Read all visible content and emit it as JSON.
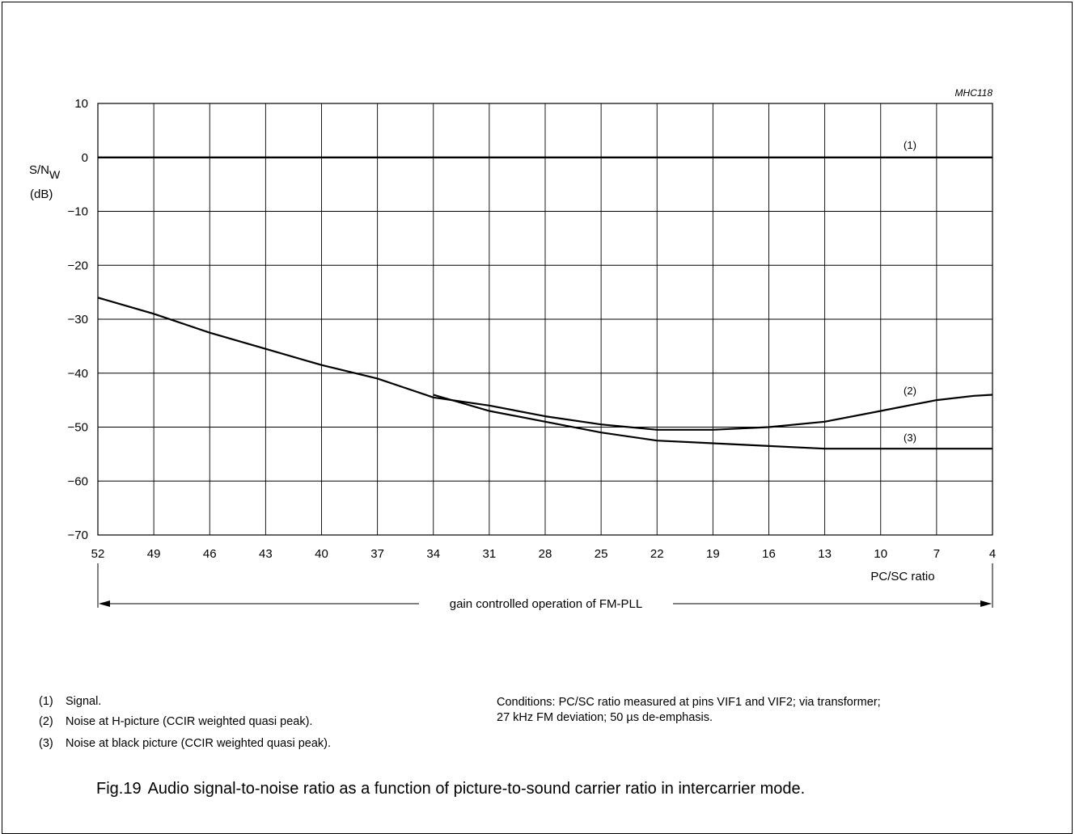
{
  "chart_data": {
    "type": "line",
    "code": "MHC118",
    "ylabel_main": "S/N",
    "ylabel_sub": "W",
    "ylabel_unit": "(dB)",
    "xlabel": "PC/SC ratio",
    "ylim": [
      -70,
      10
    ],
    "xlim": [
      52,
      4
    ],
    "x_ticks": [
      "52",
      "49",
      "46",
      "43",
      "40",
      "37",
      "34",
      "31",
      "28",
      "25",
      "22",
      "19",
      "16",
      "13",
      "10",
      "7",
      "4"
    ],
    "y_ticks": [
      "10",
      "0",
      "−10",
      "−20",
      "−30",
      "−40",
      "−50",
      "−60",
      "−70"
    ],
    "grid": true,
    "series": [
      {
        "name": "(1)",
        "x": [
          52,
          4
        ],
        "y": [
          0,
          0
        ]
      },
      {
        "name": "(2)",
        "x": [
          52,
          49,
          46,
          43,
          40,
          37,
          34,
          31,
          28,
          25,
          22,
          19,
          16,
          13,
          10,
          7,
          5,
          4
        ],
        "y": [
          -26,
          -29,
          -32.5,
          -35.5,
          -38.5,
          -41,
          -44.5,
          -46,
          -48,
          -49.5,
          -50.5,
          -50.5,
          -50,
          -49,
          -47,
          -45,
          -44.2,
          -44
        ]
      },
      {
        "name": "(3)",
        "x": [
          34,
          31,
          28,
          25,
          22,
          19,
          16,
          13,
          10,
          7,
          4
        ],
        "y": [
          -44,
          -47,
          -49,
          -51,
          -52.5,
          -53,
          -53.5,
          -54,
          -54,
          -54,
          -54
        ]
      }
    ],
    "range_annotation": "gain controlled operation of FM-PLL"
  },
  "notes": [
    {
      "num": "(1)",
      "text": "Signal."
    },
    {
      "num": "(2)",
      "text": "Noise at H-picture (CCIR weighted quasi peak)."
    },
    {
      "num": "(3)",
      "text": "Noise at black picture (CCIR weighted quasi peak)."
    }
  ],
  "conditions": {
    "line1": "Conditions: PC/SC ratio measured at pins VIF1 and VIF2; via transformer;",
    "line2": "27 kHz FM deviation; 50 µs de-emphasis."
  },
  "caption": {
    "label": "Fig.19",
    "text": "Audio signal-to-noise ratio as a function of picture-to-sound carrier ratio in intercarrier mode."
  }
}
